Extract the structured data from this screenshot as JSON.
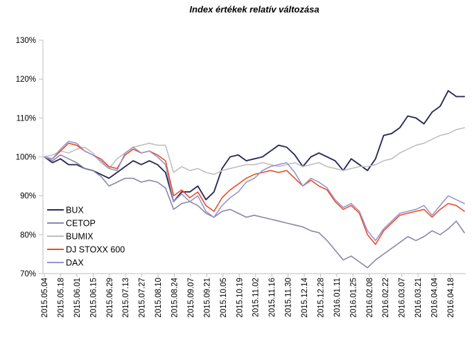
{
  "chart_data": {
    "type": "line",
    "title": "Index értékek relatív változása",
    "ylabel": "",
    "xlabel": "",
    "y_ticks": [
      "130%",
      "120%",
      "110%",
      "100%",
      "90%",
      "80%",
      "70%"
    ],
    "ylim": [
      70,
      130
    ],
    "grid": false,
    "legend_position": "inside-left",
    "axis_color": "#BFBFBF",
    "text_color": "#000000",
    "x_tick_labels": [
      "2015.05.04",
      "2015.05.18",
      "2015.06.01",
      "2015.06.15",
      "2015.06.29",
      "2015.07.13",
      "2015.07.27",
      "2015.08.10",
      "2015.08.24",
      "2015.09.07",
      "2015.09.21",
      "2015.10.05",
      "2015.10.19",
      "2015.11.02",
      "2015.11.16",
      "2015.11.30",
      "2015.12.14",
      "2015.12.28",
      "2016.01.11",
      "2016.01.25",
      "2016.02.08",
      "2016.02.22",
      "2016.03.07",
      "2016.03.21",
      "2016.04.04",
      "2016.04.18"
    ],
    "sampling": "weekly estimates read from chart, values in percent, first point 2015.05.04",
    "points_per_series": 53,
    "series": [
      {
        "name": "BUX",
        "color": "#2A2A5A",
        "values": [
          100,
          98.5,
          99.5,
          98,
          98,
          97,
          96.5,
          95.5,
          94.5,
          96,
          97.5,
          99,
          98,
          99,
          98,
          96,
          88.5,
          91,
          91,
          92.5,
          89,
          91,
          97,
          100,
          100.5,
          99,
          99.5,
          100,
          101.5,
          103,
          102.5,
          100.5,
          97.5,
          100,
          101,
          100,
          99,
          96.5,
          99.5,
          98,
          96.5,
          99.5,
          105.5,
          106,
          107.5,
          110.5,
          110,
          108.5,
          111.5,
          113,
          117,
          115.5,
          115.5
        ]
      },
      {
        "name": "CETOP",
        "color": "#8787A5",
        "values": [
          100,
          99,
          100.5,
          99.5,
          98.5,
          97,
          96.5,
          95,
          92.5,
          93.5,
          94.5,
          94.5,
          93.5,
          94,
          93.5,
          92,
          86.5,
          88,
          88.5,
          87.5,
          85.5,
          84.5,
          86,
          86.5,
          85.5,
          84.5,
          85,
          84.5,
          84,
          83.5,
          83,
          82.5,
          82,
          81,
          80.5,
          78.5,
          76,
          73.5,
          74.5,
          73,
          71.5,
          73.5,
          75,
          76.5,
          78,
          79.5,
          78.5,
          79.5,
          81,
          80,
          81.5,
          83.5,
          80.5
        ]
      },
      {
        "name": "BUMIX",
        "color": "#BFBFBF",
        "values": [
          100,
          100.5,
          101.5,
          101,
          102,
          102.5,
          101,
          98.5,
          97,
          99.5,
          101,
          102.5,
          103,
          103.5,
          103,
          103,
          96,
          97.5,
          96.5,
          97,
          96,
          95.5,
          96.5,
          97,
          97.5,
          98,
          98,
          98.5,
          98,
          97.5,
          98,
          98.5,
          97.5,
          98,
          98.5,
          97.5,
          97,
          96.5,
          97,
          97.5,
          97.5,
          98,
          99,
          99.5,
          101,
          102,
          103,
          103.5,
          104.5,
          105.5,
          106,
          107,
          107.5
        ]
      },
      {
        "name": "DJ STOXX 600",
        "color": "#EE4B23",
        "values": [
          100,
          99.5,
          101.5,
          103.5,
          103,
          101.5,
          100.5,
          99.5,
          97.5,
          97,
          100.5,
          102,
          101,
          101.5,
          100.5,
          99,
          90,
          91.5,
          89.5,
          91,
          87.5,
          86,
          89.5,
          91.5,
          93,
          94.5,
          95.5,
          96,
          96.5,
          96,
          96.5,
          94.5,
          92.5,
          94,
          92.5,
          91.5,
          88.5,
          86.5,
          87.5,
          85.5,
          80,
          77.5,
          81,
          83,
          85,
          85.5,
          86,
          86.5,
          84.5,
          86.5,
          88,
          87.5,
          86
        ]
      },
      {
        "name": "DAX",
        "color": "#9595CE",
        "values": [
          100,
          99.5,
          102,
          104,
          103.5,
          101.5,
          100.5,
          99,
          97,
          96.5,
          101,
          102.5,
          101,
          101.5,
          100,
          98,
          88.5,
          90.5,
          88.5,
          90,
          86,
          84.5,
          87.5,
          89.5,
          91,
          93.5,
          94.5,
          96.5,
          97.5,
          98,
          98.5,
          96,
          92.5,
          94.5,
          93.5,
          92,
          89,
          87,
          88,
          86,
          81,
          78.5,
          81.5,
          83.5,
          85.5,
          86,
          86.5,
          87.5,
          85,
          87.5,
          90,
          89,
          88
        ]
      }
    ]
  }
}
